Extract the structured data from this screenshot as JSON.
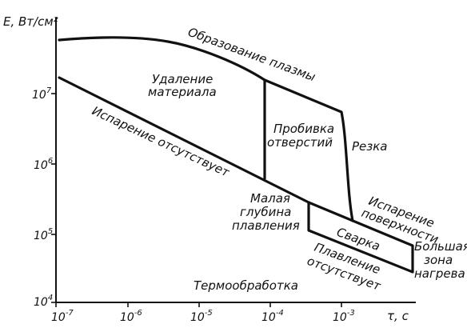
{
  "axes": {
    "y_title": "E, Вт/см²",
    "x_title": "τ, с",
    "y_ticks": [
      {
        "base": "10",
        "exp": "4"
      },
      {
        "base": "10",
        "exp": "5"
      },
      {
        "base": "10",
        "exp": "6"
      },
      {
        "base": "10",
        "exp": "7"
      }
    ],
    "x_ticks": [
      {
        "base": "10",
        "exp": "-7"
      },
      {
        "base": "10",
        "exp": "-6"
      },
      {
        "base": "10",
        "exp": "-5"
      },
      {
        "base": "10",
        "exp": "-4"
      },
      {
        "base": "10",
        "exp": "-3"
      }
    ]
  },
  "labels": {
    "plasma": "Образование плазмы",
    "removal_1": "Удаление",
    "removal_2": "материала",
    "no_evap": "Испарение отсутствует",
    "drill_1": "Пробивка",
    "drill_2": "отверстий",
    "cut": "Резка",
    "shallow_1": "Малая",
    "shallow_2": "глубина",
    "shallow_3": "плавления",
    "surface_1": "Испарение",
    "surface_2": "поверхности",
    "weld": "Сварка",
    "no_melt_1": "Плавление",
    "no_melt_2": "отсутствует",
    "large_1": "Большая",
    "large_2": "зона",
    "large_3": "нагрева",
    "heat": "Термообработка"
  }
}
